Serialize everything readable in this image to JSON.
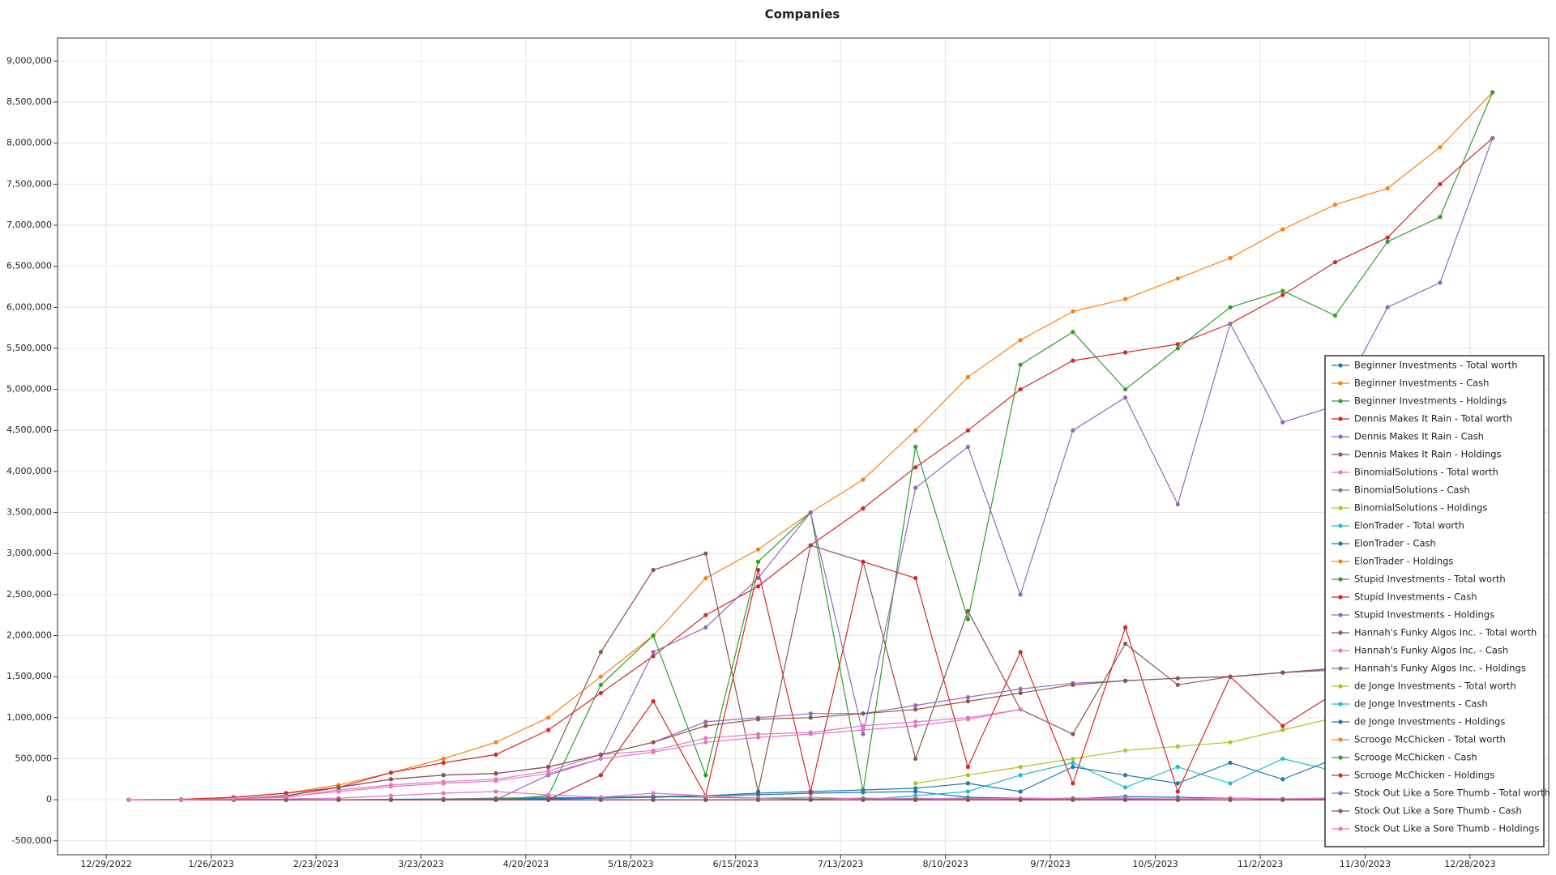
{
  "chart_data": {
    "type": "line",
    "title": "Companies",
    "x": [
      "1/4/2023",
      "1/18/2023",
      "2/1/2023",
      "2/15/2023",
      "3/1/2023",
      "3/15/2023",
      "3/29/2023",
      "4/12/2023",
      "4/26/2023",
      "5/10/2023",
      "5/24/2023",
      "6/7/2023",
      "6/21/2023",
      "7/5/2023",
      "7/19/2023",
      "8/2/2023",
      "8/16/2023",
      "8/30/2023",
      "9/13/2023",
      "9/27/2023",
      "10/11/2023",
      "10/25/2023",
      "11/8/2023",
      "11/22/2023",
      "12/6/2023",
      "12/20/2023",
      "1/3/2024"
    ],
    "xlim": [
      "12/16/2022",
      "1/18/2024"
    ],
    "xticks": [
      "12/29/2022",
      "1/26/2023",
      "2/23/2023",
      "3/23/2023",
      "4/20/2023",
      "5/18/2023",
      "6/15/2023",
      "7/13/2023",
      "8/10/2023",
      "9/7/2023",
      "10/5/2023",
      "11/2/2023",
      "11/30/2023",
      "12/28/2023"
    ],
    "ylim": [
      -670000,
      9280000
    ],
    "yticks": [
      {
        "value": -500000,
        "label": "-500,000"
      },
      0,
      {
        "value": 500000,
        "label": "500,000"
      },
      {
        "value": 1000000,
        "label": "1,000,000"
      },
      {
        "value": 1500000,
        "label": "1,500,000"
      },
      {
        "value": 2000000,
        "label": "2,000,000"
      },
      {
        "value": 2500000,
        "label": "2,500,000"
      },
      {
        "value": 3000000,
        "label": "3,000,000"
      },
      {
        "value": 3500000,
        "label": "3,500,000"
      },
      {
        "value": 4000000,
        "label": "4,000,000"
      },
      {
        "value": 4500000,
        "label": "4,500,000"
      },
      {
        "value": 5000000,
        "label": "5,000,000"
      },
      {
        "value": 5500000,
        "label": "5,500,000"
      },
      {
        "value": 6000000,
        "label": "6,000,000"
      },
      {
        "value": 6500000,
        "label": "6,500,000"
      },
      {
        "value": 7000000,
        "label": "7,000,000"
      },
      {
        "value": 7500000,
        "label": "7,500,000"
      },
      {
        "value": 8000000,
        "label": "8,000,000"
      },
      {
        "value": 8500000,
        "label": "8,500,000"
      },
      {
        "value": 9000000,
        "label": "9,000,000"
      }
    ],
    "grid": true,
    "legend": "lower right",
    "series": [
      {
        "name": "Beginner Investments - Total worth",
        "color": "#1f77b4",
        "values": [
          0,
          0,
          0,
          0,
          0,
          5000,
          10000,
          10000,
          20000,
          30000,
          40000,
          50000,
          60000,
          80000,
          90000,
          100000,
          30000,
          20000,
          10000,
          40000,
          30000,
          20000,
          10000,
          20000,
          30000,
          20000,
          10000
        ]
      },
      {
        "name": "Beginner Investments - Cash",
        "color": "#ff7f0e",
        "values": [
          0,
          5000,
          30000,
          80000,
          180000,
          330000,
          500000,
          700000,
          1000000,
          1500000,
          2000000,
          2700000,
          3050000,
          3500000,
          3900000,
          4500000,
          5150000,
          5600000,
          5950000,
          6100000,
          6350000,
          6600000,
          6950000,
          7250000,
          7450000,
          7950000,
          8620000
        ]
      },
      {
        "name": "Beginner Investments - Holdings",
        "color": "#2ca02c",
        "values": [
          0,
          0,
          0,
          0,
          0,
          0,
          0,
          0,
          50000,
          1400000,
          2000000,
          300000,
          2900000,
          3500000,
          100000,
          4300000,
          2200000,
          5300000,
          5700000,
          5000000,
          5500000,
          6000000,
          6200000,
          5900000,
          6800000,
          7100000,
          8620000
        ]
      },
      {
        "name": "Dennis Makes It Rain - Total worth",
        "color": "#d62728",
        "values": [
          0,
          5000,
          30000,
          80000,
          150000,
          330000,
          450000,
          550000,
          850000,
          1300000,
          1750000,
          2250000,
          2600000,
          3100000,
          3550000,
          4050000,
          4500000,
          5000000,
          5350000,
          5450000,
          5550000,
          5800000,
          6150000,
          6550000,
          6850000,
          7500000,
          8060000
        ]
      },
      {
        "name": "Dennis Makes It Rain - Cash",
        "color": "#9467bd",
        "values": [
          0,
          0,
          0,
          0,
          0,
          0,
          0,
          0,
          300000,
          500000,
          1800000,
          2100000,
          2700000,
          3500000,
          800000,
          3800000,
          4300000,
          2500000,
          4500000,
          4900000,
          3600000,
          5800000,
          4600000,
          4800000,
          6000000,
          6300000,
          8060000
        ]
      },
      {
        "name": "Dennis Makes It Rain - Holdings",
        "color": "#8c564b",
        "values": [
          0,
          0,
          10000,
          50000,
          150000,
          250000,
          300000,
          320000,
          400000,
          1800000,
          2800000,
          3000000,
          100000,
          3100000,
          2900000,
          500000,
          2300000,
          1100000,
          800000,
          1900000,
          1400000,
          1500000,
          1550000,
          1600000,
          1650000,
          1700000,
          1800000
        ]
      },
      {
        "name": "BinomialSolutions - Total worth",
        "color": "#e377c2",
        "values": [
          0,
          0,
          10000,
          30000,
          120000,
          180000,
          220000,
          250000,
          350000,
          550000,
          600000,
          750000,
          800000,
          820000,
          900000,
          950000,
          1000000,
          1100000,
          null,
          null,
          null,
          null,
          null,
          null,
          null,
          null,
          null
        ]
      },
      {
        "name": "BinomialSolutions - Cash",
        "color": "#7f7f7f",
        "values": [
          0,
          0,
          0,
          0,
          0,
          0,
          10000,
          20000,
          30000,
          20000,
          40000,
          30000,
          20000,
          10000,
          20000,
          10000,
          20000,
          10000,
          20000,
          10000,
          10000,
          20000,
          10000,
          10000,
          20000,
          10000,
          10000
        ]
      },
      {
        "name": "BinomialSolutions - Holdings",
        "color": "#bcbd22",
        "values": [
          null,
          null,
          null,
          null,
          null,
          null,
          null,
          null,
          null,
          null,
          null,
          null,
          null,
          null,
          null,
          200000,
          300000,
          400000,
          500000,
          600000,
          650000,
          700000,
          850000,
          1000000,
          1150000,
          null,
          null
        ]
      },
      {
        "name": "ElonTrader - Total worth",
        "color": "#17becf",
        "values": [
          0,
          0,
          0,
          0,
          0,
          0,
          0,
          0,
          0,
          0,
          0,
          0,
          0,
          0,
          0,
          50000,
          100000,
          300000,
          450000,
          150000,
          400000,
          200000,
          500000,
          350000,
          550000,
          null,
          null
        ]
      },
      {
        "name": "ElonTrader - Cash",
        "color": "#1f77b4",
        "values": [
          0,
          0,
          0,
          0,
          0,
          0,
          0,
          0,
          10000,
          20000,
          30000,
          50000,
          80000,
          100000,
          120000,
          140000,
          200000,
          100000,
          400000,
          300000,
          200000,
          450000,
          250000,
          500000,
          400000,
          null,
          null
        ]
      },
      {
        "name": "ElonTrader - Holdings",
        "color": "#ff7f0e",
        "values": [
          0,
          0,
          0,
          0,
          0,
          0,
          0,
          0,
          0,
          0,
          0,
          0,
          0,
          0,
          0,
          0,
          0,
          0,
          0,
          0,
          0,
          0,
          0,
          0,
          0,
          0,
          0
        ]
      },
      {
        "name": "Stupid Investments - Total worth",
        "color": "#2ca02c",
        "values": [
          0,
          0,
          0,
          0,
          0,
          0,
          0,
          0,
          0,
          0,
          0,
          0,
          0,
          0,
          0,
          0,
          0,
          0,
          0,
          0,
          0,
          0,
          0,
          0,
          0,
          0,
          0
        ]
      },
      {
        "name": "Stupid Investments - Cash",
        "color": "#d62728",
        "values": [
          0,
          0,
          0,
          0,
          0,
          0,
          0,
          0,
          0,
          300000,
          1200000,
          50000,
          2800000,
          100000,
          2900000,
          2700000,
          400000,
          1800000,
          200000,
          2100000,
          100000,
          1500000,
          900000,
          1300000,
          1900000,
          null,
          null
        ]
      },
      {
        "name": "Stupid Investments - Holdings",
        "color": "#9467bd",
        "values": [
          0,
          0,
          10000,
          50000,
          150000,
          250000,
          300000,
          320000,
          400000,
          550000,
          700000,
          950000,
          1000000,
          1050000,
          1050000,
          1150000,
          1250000,
          1350000,
          1420000,
          1450000,
          1480000,
          1500000,
          1550000,
          1580000,
          1600000,
          null,
          null
        ]
      },
      {
        "name": "Hannah's Funky Algos Inc. - Total worth",
        "color": "#8c564b",
        "values": [
          0,
          0,
          10000,
          50000,
          150000,
          250000,
          300000,
          320000,
          400000,
          550000,
          700000,
          900000,
          980000,
          1000000,
          1050000,
          1100000,
          1200000,
          1300000,
          1400000,
          1450000,
          1480000,
          1500000,
          1550000,
          1600000,
          1620000,
          null,
          null
        ]
      },
      {
        "name": "Hannah's Funky Algos Inc. - Cash",
        "color": "#e377c2",
        "values": [
          0,
          0,
          0,
          10000,
          20000,
          50000,
          80000,
          100000,
          60000,
          30000,
          80000,
          50000,
          20000,
          30000,
          10000,
          20000,
          10000,
          20000,
          10000,
          20000,
          10000,
          20000,
          10000,
          20000,
          10000,
          null,
          null
        ]
      },
      {
        "name": "Hannah's Funky Algos Inc. - Holdings",
        "color": "#7f7f7f",
        "values": [
          0,
          0,
          0,
          0,
          0,
          0,
          0,
          0,
          0,
          0,
          0,
          0,
          0,
          0,
          0,
          0,
          0,
          0,
          0,
          0,
          0,
          0,
          0,
          0,
          0,
          0,
          0
        ]
      },
      {
        "name": "de Jonge Investments - Total worth",
        "color": "#bcbd22",
        "values": [
          0,
          0,
          0,
          0,
          0,
          0,
          0,
          0,
          0,
          0,
          0,
          0,
          0,
          0,
          0,
          0,
          0,
          0,
          0,
          0,
          0,
          0,
          0,
          0,
          0,
          0,
          0
        ]
      },
      {
        "name": "de Jonge Investments - Cash",
        "color": "#17becf",
        "values": [
          0,
          0,
          0,
          0,
          0,
          0,
          0,
          0,
          0,
          0,
          0,
          0,
          0,
          0,
          0,
          0,
          0,
          0,
          0,
          0,
          0,
          0,
          0,
          0,
          0,
          0,
          0
        ]
      },
      {
        "name": "de Jonge Investments - Holdings",
        "color": "#1f77b4",
        "values": [
          0,
          0,
          0,
          0,
          0,
          0,
          0,
          0,
          0,
          0,
          0,
          0,
          0,
          0,
          0,
          0,
          0,
          0,
          0,
          0,
          0,
          0,
          0,
          0,
          0,
          0,
          0
        ]
      },
      {
        "name": "Scrooge McChicken - Total worth",
        "color": "#ff7f0e",
        "values": [
          0,
          0,
          0,
          0,
          0,
          0,
          0,
          0,
          0,
          0,
          0,
          0,
          0,
          0,
          0,
          0,
          0,
          0,
          0,
          0,
          0,
          0,
          0,
          0,
          0,
          0,
          0
        ]
      },
      {
        "name": "Scrooge McChicken - Cash",
        "color": "#2ca02c",
        "values": [
          0,
          0,
          0,
          0,
          0,
          0,
          0,
          0,
          0,
          0,
          0,
          0,
          0,
          0,
          0,
          0,
          0,
          0,
          0,
          0,
          0,
          0,
          0,
          0,
          0,
          0,
          0
        ]
      },
      {
        "name": "Scrooge McChicken - Holdings",
        "color": "#d62728",
        "values": [
          0,
          0,
          0,
          0,
          0,
          0,
          0,
          0,
          0,
          0,
          0,
          0,
          0,
          0,
          0,
          0,
          0,
          0,
          0,
          0,
          0,
          0,
          0,
          0,
          0,
          0,
          0
        ]
      },
      {
        "name": "Stock Out Like a Sore Thumb - Total worth",
        "color": "#9467bd",
        "values": [
          0,
          0,
          0,
          0,
          0,
          0,
          0,
          0,
          0,
          0,
          0,
          0,
          0,
          0,
          0,
          0,
          0,
          0,
          0,
          0,
          0,
          0,
          0,
          0,
          0,
          0,
          0
        ]
      },
      {
        "name": "Stock Out Like a Sore Thumb - Cash",
        "color": "#8c564b",
        "values": [
          0,
          0,
          0,
          0,
          0,
          0,
          0,
          0,
          0,
          0,
          0,
          0,
          0,
          0,
          0,
          0,
          0,
          0,
          0,
          0,
          0,
          0,
          0,
          0,
          0,
          0,
          0
        ]
      },
      {
        "name": "Stock Out Like a Sore Thumb - Holdings",
        "color": "#e377c2",
        "values": [
          0,
          0,
          10000,
          40000,
          100000,
          160000,
          200000,
          230000,
          320000,
          500000,
          580000,
          700000,
          760000,
          800000,
          850000,
          900000,
          980000,
          1100000,
          null,
          null,
          null,
          null,
          null,
          null,
          null,
          null,
          null
        ]
      }
    ]
  }
}
